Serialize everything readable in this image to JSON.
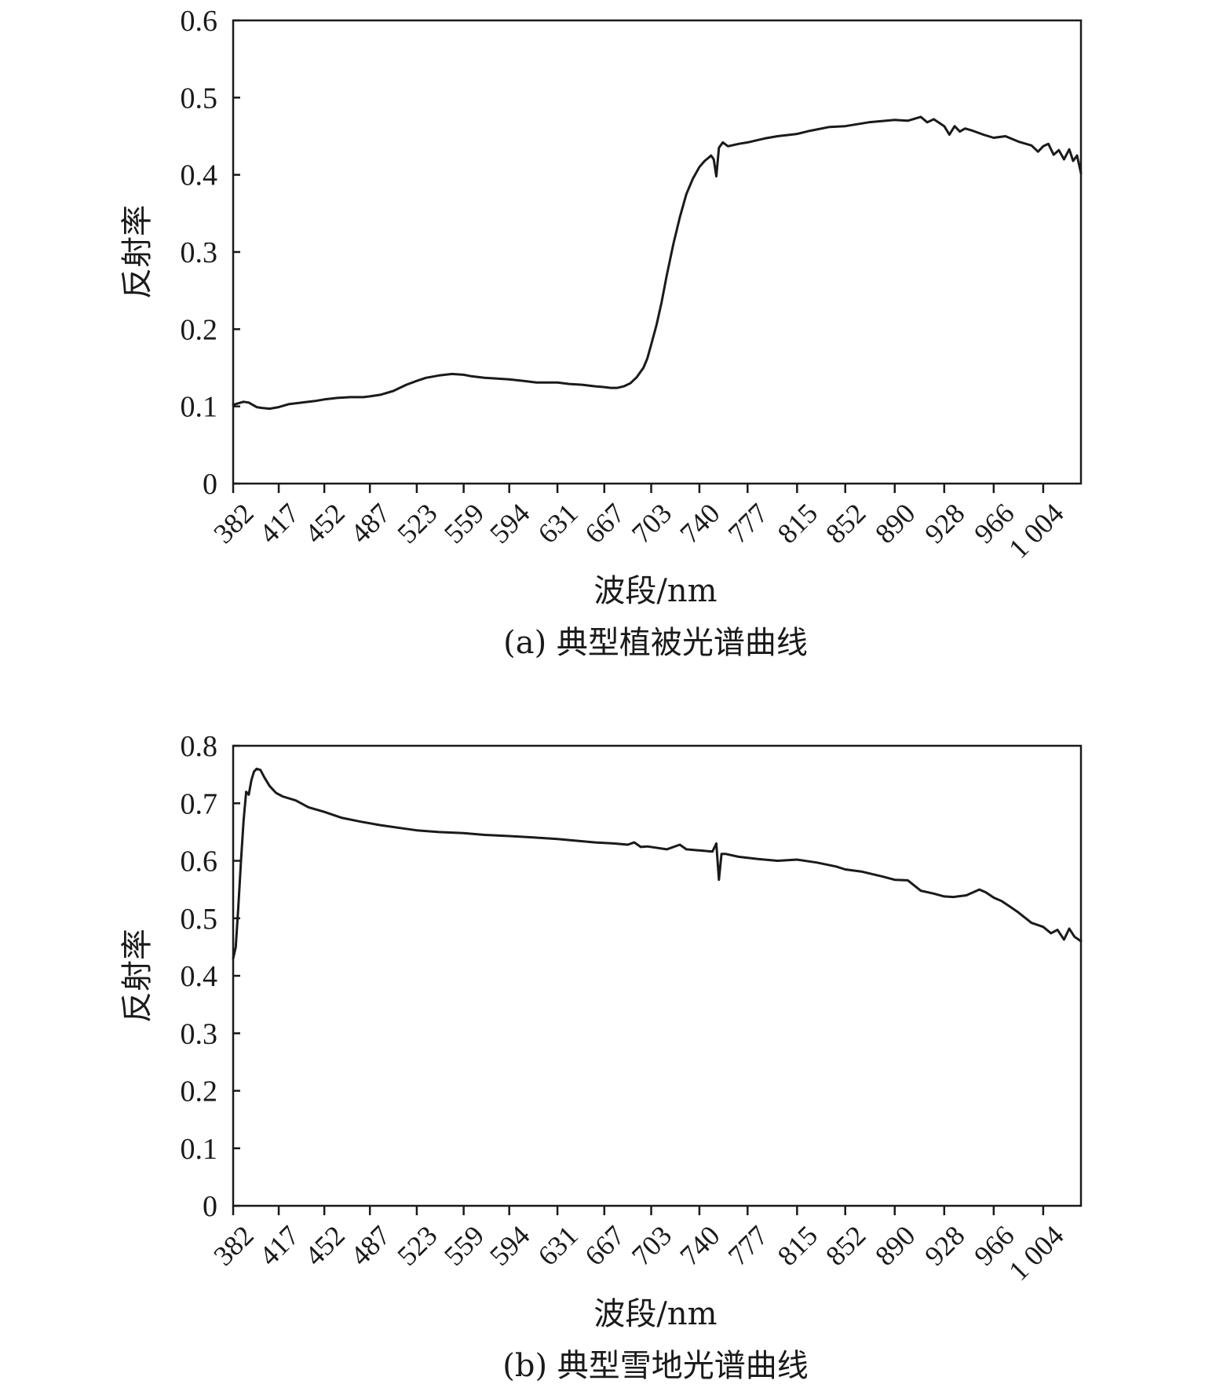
{
  "chart_data": [
    {
      "type": "line",
      "caption": "(a) 典型植被光谱曲线",
      "xlabel": "波段/nm",
      "ylabel": "反射率",
      "xlim": [
        382,
        1033
      ],
      "ylim": [
        0,
        0.6
      ],
      "x_ticks": [
        382,
        417,
        452,
        487,
        523,
        559,
        594,
        631,
        667,
        703,
        740,
        777,
        815,
        852,
        890,
        928,
        966,
        1004
      ],
      "x_tick_labels": [
        "382",
        "417",
        "452",
        "487",
        "523",
        "559",
        "594",
        "631",
        "667",
        "703",
        "740",
        "777",
        "815",
        "852",
        "890",
        "928",
        "966",
        "1 004"
      ],
      "y_ticks": [
        0,
        0.1,
        0.2,
        0.3,
        0.4,
        0.5,
        0.6
      ],
      "y_tick_labels": [
        "0",
        "0.1",
        "0.2",
        "0.3",
        "0.4",
        "0.5",
        "0.6"
      ],
      "series": [
        {
          "x": [
            382,
            386,
            390,
            394,
            400,
            404,
            410,
            417,
            425,
            435,
            445,
            452,
            462,
            472,
            482,
            487,
            495,
            505,
            515,
            523,
            530,
            540,
            550,
            559,
            565,
            575,
            585,
            594,
            605,
            615,
            625,
            631,
            640,
            650,
            660,
            667,
            672,
            677,
            682,
            687,
            692,
            697,
            700,
            703,
            707,
            711,
            715,
            720,
            725,
            730,
            735,
            740,
            744,
            747,
            749,
            751,
            753,
            755,
            758,
            762,
            770,
            777,
            790,
            800,
            815,
            825,
            840,
            852,
            870,
            890,
            900,
            910,
            915,
            920,
            928,
            932,
            936,
            940,
            944,
            950,
            958,
            966,
            975,
            985,
            995,
            1000,
            1004,
            1008,
            1012,
            1016,
            1020,
            1024,
            1027,
            1030,
            1033
          ],
          "y": [
            0.102,
            0.104,
            0.106,
            0.105,
            0.099,
            0.098,
            0.097,
            0.099,
            0.103,
            0.105,
            0.107,
            0.109,
            0.111,
            0.112,
            0.112,
            0.113,
            0.115,
            0.12,
            0.128,
            0.133,
            0.137,
            0.14,
            0.142,
            0.141,
            0.139,
            0.137,
            0.136,
            0.135,
            0.133,
            0.131,
            0.131,
            0.131,
            0.129,
            0.128,
            0.126,
            0.125,
            0.124,
            0.124,
            0.126,
            0.13,
            0.138,
            0.15,
            0.162,
            0.18,
            0.205,
            0.235,
            0.27,
            0.31,
            0.345,
            0.375,
            0.395,
            0.41,
            0.418,
            0.422,
            0.425,
            0.42,
            0.398,
            0.435,
            0.442,
            0.437,
            0.44,
            0.442,
            0.447,
            0.45,
            0.453,
            0.457,
            0.462,
            0.463,
            0.468,
            0.471,
            0.47,
            0.475,
            0.468,
            0.472,
            0.463,
            0.452,
            0.463,
            0.456,
            0.46,
            0.457,
            0.452,
            0.448,
            0.45,
            0.443,
            0.438,
            0.43,
            0.437,
            0.44,
            0.426,
            0.432,
            0.42,
            0.433,
            0.418,
            0.425,
            0.402
          ]
        }
      ]
    },
    {
      "type": "line",
      "caption": "(b) 典型雪地光谱曲线",
      "xlabel": "波段/nm",
      "ylabel": "反射率",
      "xlim": [
        382,
        1033
      ],
      "ylim": [
        0,
        0.8
      ],
      "x_ticks": [
        382,
        417,
        452,
        487,
        523,
        559,
        594,
        631,
        667,
        703,
        740,
        777,
        815,
        852,
        890,
        928,
        966,
        1004
      ],
      "x_tick_labels": [
        "382",
        "417",
        "452",
        "487",
        "523",
        "559",
        "594",
        "631",
        "667",
        "703",
        "740",
        "777",
        "815",
        "852",
        "890",
        "928",
        "966",
        "1 004"
      ],
      "y_ticks": [
        0,
        0.1,
        0.2,
        0.3,
        0.4,
        0.5,
        0.6,
        0.7,
        0.8
      ],
      "y_tick_labels": [
        "0",
        "0.1",
        "0.2",
        "0.3",
        "0.4",
        "0.5",
        "0.6",
        "0.7",
        "0.8"
      ],
      "series": [
        {
          "x": [
            382,
            384,
            386,
            388,
            390,
            392,
            394,
            396,
            398,
            400,
            403,
            406,
            410,
            415,
            420,
            430,
            440,
            452,
            465,
            480,
            495,
            510,
            523,
            540,
            559,
            575,
            594,
            610,
            631,
            645,
            660,
            667,
            675,
            685,
            690,
            695,
            700,
            715,
            725,
            730,
            740,
            750,
            753,
            755,
            757,
            760,
            770,
            785,
            800,
            815,
            830,
            845,
            852,
            865,
            880,
            890,
            900,
            910,
            920,
            928,
            935,
            945,
            955,
            960,
            966,
            972,
            978,
            985,
            995,
            1004,
            1010,
            1015,
            1020,
            1024,
            1028,
            1033
          ],
          "y": [
            0.43,
            0.45,
            0.52,
            0.6,
            0.67,
            0.72,
            0.715,
            0.74,
            0.755,
            0.76,
            0.758,
            0.745,
            0.73,
            0.718,
            0.712,
            0.705,
            0.693,
            0.685,
            0.675,
            0.668,
            0.662,
            0.657,
            0.653,
            0.65,
            0.648,
            0.645,
            0.643,
            0.641,
            0.638,
            0.635,
            0.632,
            0.631,
            0.63,
            0.628,
            0.632,
            0.624,
            0.625,
            0.62,
            0.628,
            0.62,
            0.618,
            0.616,
            0.63,
            0.567,
            0.612,
            0.612,
            0.607,
            0.603,
            0.6,
            0.602,
            0.597,
            0.59,
            0.585,
            0.581,
            0.573,
            0.567,
            0.566,
            0.548,
            0.543,
            0.538,
            0.537,
            0.54,
            0.55,
            0.545,
            0.536,
            0.53,
            0.521,
            0.51,
            0.492,
            0.485,
            0.474,
            0.48,
            0.463,
            0.482,
            0.468,
            0.46
          ]
        }
      ]
    }
  ]
}
